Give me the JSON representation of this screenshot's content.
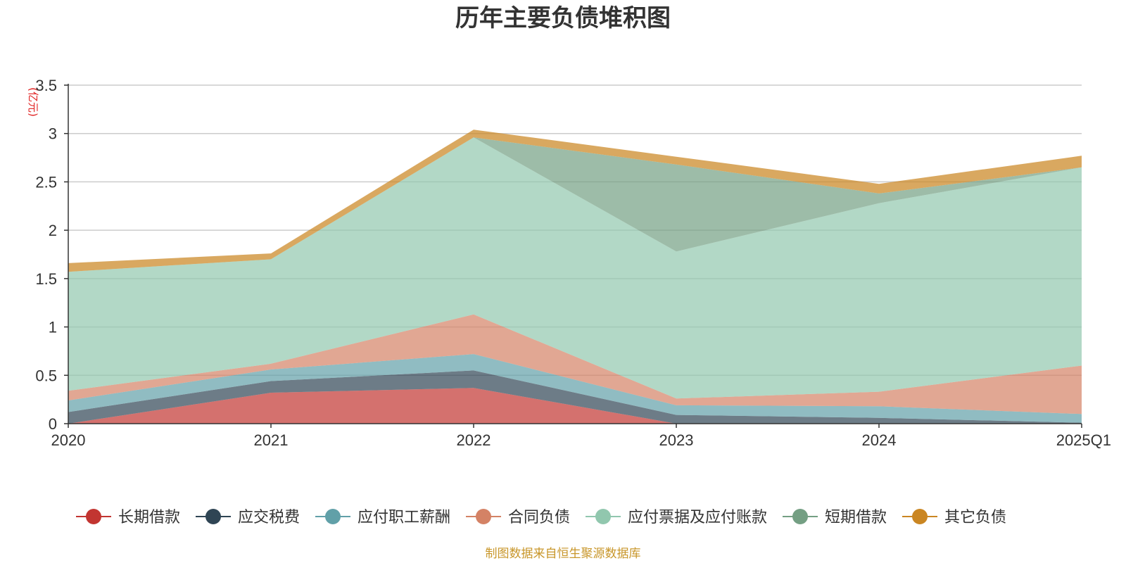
{
  "chart_data": {
    "type": "area",
    "title": "历年主要负债堆积图",
    "unit_label": "(亿元)",
    "source_note": "制图数据来自恒生聚源数据库",
    "x": [
      "2020",
      "2021",
      "2022",
      "2023",
      "2024",
      "2025Q1"
    ],
    "ylim": [
      0,
      3.5
    ],
    "yticks": [
      "0",
      "0.5",
      "1",
      "1.5",
      "2",
      "2.5",
      "3",
      "3.5"
    ],
    "grid": true,
    "legend_position": "bottom",
    "series": [
      {
        "name": "长期借款",
        "color": "#c23531",
        "values": [
          0.0,
          0.32,
          0.37,
          0.0,
          0.0,
          0.0
        ]
      },
      {
        "name": "应交税费",
        "color": "#2f4554",
        "values": [
          0.12,
          0.12,
          0.18,
          0.09,
          0.06,
          0.01
        ]
      },
      {
        "name": "应付职工薪酬",
        "color": "#61a0a8",
        "values": [
          0.12,
          0.12,
          0.17,
          0.1,
          0.12,
          0.09
        ]
      },
      {
        "name": "合同负债",
        "color": "#d48265",
        "values": [
          0.1,
          0.06,
          0.41,
          0.07,
          0.15,
          0.5
        ]
      },
      {
        "name": "应付票据及应付账款",
        "color": "#91c7ae",
        "values": [
          1.23,
          1.08,
          1.83,
          1.52,
          1.95,
          2.05
        ]
      },
      {
        "name": "短期借款",
        "color": "#749f83",
        "values": [
          0.0,
          0.0,
          0.0,
          0.9,
          0.1,
          0.0
        ]
      },
      {
        "name": "其它负债",
        "color": "#ca8622",
        "values": [
          0.09,
          0.06,
          0.08,
          0.08,
          0.1,
          0.12
        ]
      }
    ]
  }
}
